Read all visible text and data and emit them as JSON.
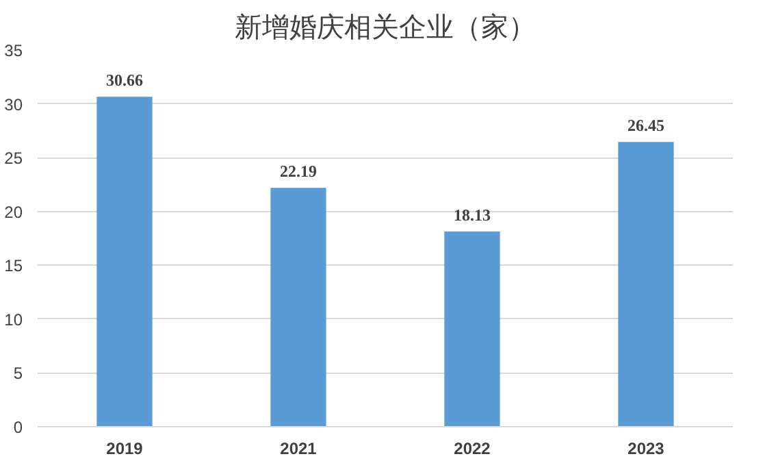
{
  "chart_data": {
    "type": "bar",
    "title": "新增婚庆相关企业（家）",
    "categories": [
      "2019",
      "2021",
      "2022",
      "2023"
    ],
    "values": [
      30.66,
      22.19,
      18.13,
      26.45
    ],
    "color": "#5b9bd5",
    "ylim": [
      0,
      35
    ],
    "yticks": [
      0,
      5,
      10,
      15,
      20,
      25,
      30,
      35
    ],
    "grid": "y",
    "data_labels": true
  }
}
